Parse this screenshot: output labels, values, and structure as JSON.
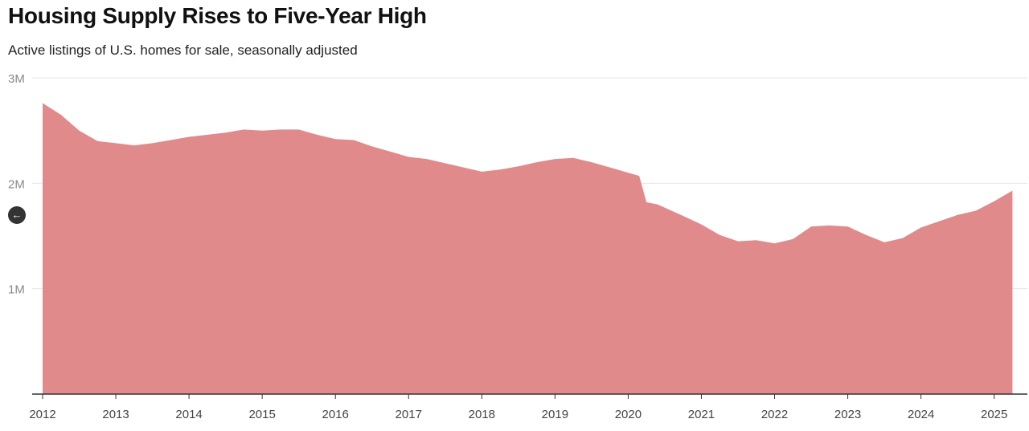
{
  "header": {
    "title": "Housing Supply Rises to Five-Year High",
    "subtitle": "Active listings of U.S. homes for sale, seasonally adjusted"
  },
  "nav": {
    "back_icon": "←"
  },
  "colors": {
    "area": "#e08a8b",
    "gridline": "#e6e6e6",
    "axis": "#333333"
  },
  "chart_data": {
    "type": "area",
    "title": "Housing Supply Rises to Five-Year High",
    "subtitle": "Active listings of U.S. homes for sale, seasonally adjusted",
    "xlabel": "",
    "ylabel": "",
    "xlim": [
      2012,
      2025.3
    ],
    "ylim": [
      0,
      3000000
    ],
    "grid": true,
    "y_ticks": [
      {
        "value": 3000000,
        "label": "3M"
      },
      {
        "value": 2000000,
        "label": "2M"
      },
      {
        "value": 1000000,
        "label": "1M"
      }
    ],
    "x_ticks": [
      {
        "value": 2012,
        "label": "2012"
      },
      {
        "value": 2013,
        "label": "2013"
      },
      {
        "value": 2014,
        "label": "2014"
      },
      {
        "value": 2015,
        "label": "2015"
      },
      {
        "value": 2016,
        "label": "2016"
      },
      {
        "value": 2017,
        "label": "2017"
      },
      {
        "value": 2018,
        "label": "2018"
      },
      {
        "value": 2019,
        "label": "2019"
      },
      {
        "value": 2020,
        "label": "2020"
      },
      {
        "value": 2021,
        "label": "2021"
      },
      {
        "value": 2022,
        "label": "2022"
      },
      {
        "value": 2023,
        "label": "2023"
      },
      {
        "value": 2024,
        "label": "2024"
      },
      {
        "value": 2025,
        "label": "2025"
      }
    ],
    "series": [
      {
        "x": [
          2012.0,
          2012.25,
          2012.5,
          2012.75,
          2013.0,
          2013.25,
          2013.5,
          2013.75,
          2014.0,
          2014.25,
          2014.5,
          2014.75,
          2015.0,
          2015.25,
          2015.5,
          2015.75,
          2016.0,
          2016.25,
          2016.5,
          2016.75,
          2017.0,
          2017.25,
          2017.5,
          2017.75,
          2018.0,
          2018.25,
          2018.5,
          2018.75,
          2019.0,
          2019.25,
          2019.5,
          2019.75,
          2020.0,
          2020.15,
          2020.25,
          2020.4,
          2020.75,
          2021.0,
          2021.25,
          2021.5,
          2021.75,
          2022.0,
          2022.25,
          2022.5,
          2022.75,
          2023.0,
          2023.25,
          2023.5,
          2023.75,
          2024.0,
          2024.25,
          2024.5,
          2024.75,
          2025.0,
          2025.25
        ],
        "values": [
          2760000,
          2650000,
          2500000,
          2400000,
          2380000,
          2360000,
          2380000,
          2410000,
          2440000,
          2460000,
          2480000,
          2510000,
          2500000,
          2510000,
          2510000,
          2460000,
          2420000,
          2410000,
          2350000,
          2300000,
          2250000,
          2230000,
          2190000,
          2150000,
          2110000,
          2130000,
          2160000,
          2200000,
          2230000,
          2240000,
          2200000,
          2150000,
          2100000,
          2070000,
          1820000,
          1800000,
          1690000,
          1610000,
          1510000,
          1450000,
          1460000,
          1430000,
          1470000,
          1590000,
          1600000,
          1590000,
          1510000,
          1440000,
          1480000,
          1580000,
          1640000,
          1700000,
          1740000,
          1830000,
          1930000
        ]
      }
    ]
  }
}
